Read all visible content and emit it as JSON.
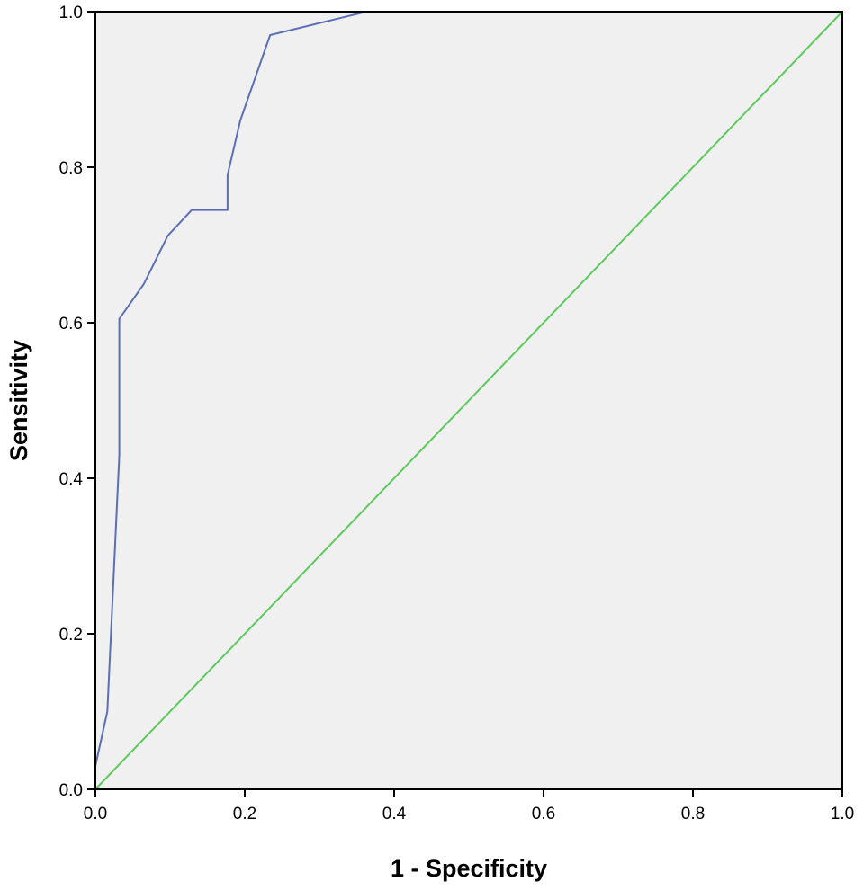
{
  "chart_data": {
    "type": "line",
    "title": "",
    "xlabel": "1 - Specificity",
    "ylabel": "Sensitivity",
    "xlim": [
      0.0,
      1.0
    ],
    "ylim": [
      0.0,
      1.0
    ],
    "xticks": [
      "0.0",
      "0.2",
      "0.4",
      "0.6",
      "0.8",
      "1.0"
    ],
    "yticks": [
      "0.0",
      "0.2",
      "0.4",
      "0.6",
      "0.8",
      "1.0"
    ],
    "grid": false,
    "legend": "none",
    "plot_background": "#f0f0f0",
    "series": [
      {
        "color": "#5b6fb5",
        "x": [
          0.0,
          0.0,
          0.016,
          0.032,
          0.032,
          0.065,
          0.097,
          0.129,
          0.177,
          0.177,
          0.194,
          0.234,
          0.363,
          1.0
        ],
        "y": [
          0.0,
          0.03,
          0.1,
          0.43,
          0.605,
          0.65,
          0.712,
          0.745,
          0.745,
          0.79,
          0.86,
          0.97,
          1.0,
          1.0
        ]
      },
      {
        "color": "#5cc95c",
        "x": [
          0.0,
          1.0
        ],
        "y": [
          0.0,
          1.0
        ]
      }
    ]
  }
}
